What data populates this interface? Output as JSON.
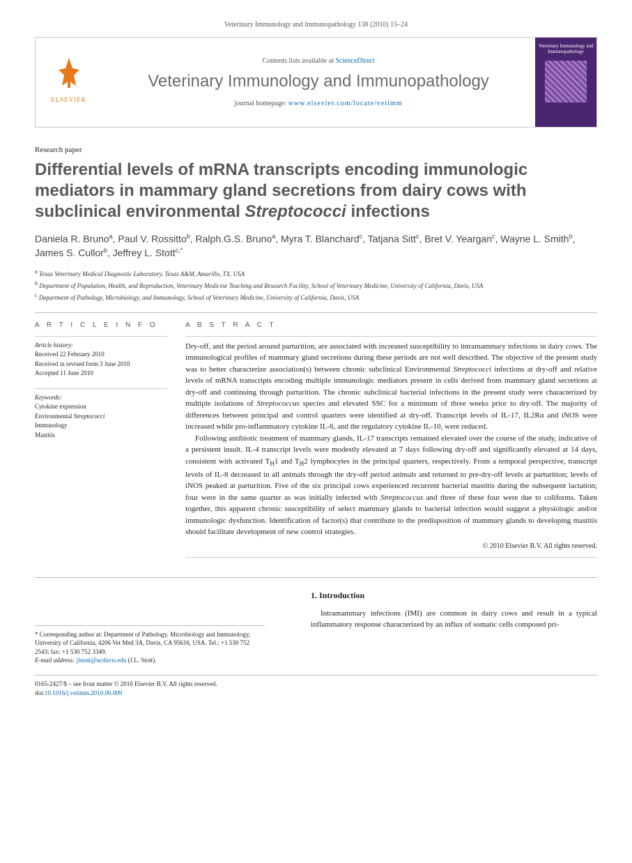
{
  "header_cite": "Veterinary Immunology and Immunopathology 138 (2010) 15–24",
  "banner": {
    "contents_prefix": "Contents lists available at ",
    "contents_link": "ScienceDirect",
    "journal_name": "Veterinary Immunology and Immunopathology",
    "homepage_prefix": "journal homepage: ",
    "homepage_link": "www.elsevier.com/locate/vetimm",
    "cover_title": "Veterinary Immunology and Immunopathology",
    "elsevier": "ELSEVIER"
  },
  "article_type": "Research paper",
  "title_html": "Differential levels of mRNA transcripts encoding immunologic mediators in mammary gland secretions from dairy cows with subclinical environmental <em>Streptococci</em> infections",
  "authors_html": "Daniela R. Bruno<sup>a</sup>, Paul V. Rossitto<sup>b</sup>, Ralph.G.S. Bruno<sup>a</sup>, Myra T. Blanchard<sup>c</sup>, Tatjana Sitt<sup>c</sup>, Bret V. Yeargan<sup>c</sup>, Wayne L. Smith<sup>b</sup>, James S. Cullor<sup>b</sup>, Jeffrey L. Stott<sup>c,*</sup>",
  "affiliations": [
    "<sup>a</sup> Texas Veterinary Medical Diagnostic Laboratory, Texas A&M, Amarillo, TX, USA",
    "<sup>b</sup> Department of Population, Health, and Reproduction, Veterinary Medicine Teaching and Research Facility, School of Veterinary Medicine, University of California, Davis, USA",
    "<sup>c</sup> Department of Pathology, Microbiology, and Immunology, School of Veterinary Medicine, University of California, Davis, USA"
  ],
  "article_info": {
    "head": "A R T I C L E   I N F O",
    "history_lbl": "Article history:",
    "history": [
      "Received 22 February 2010",
      "Received in revised form 3 June 2010",
      "Accepted 11 June 2010"
    ],
    "keywords_lbl": "Keywords:",
    "keywords": [
      "Cytokine expression",
      "Environmental Streptococci",
      "Immunology",
      "Mastitis"
    ]
  },
  "abstract": {
    "head": "A B S T R A C T",
    "paragraphs": [
      "Dry-off, and the period around parturition, are associated with increased susceptibility to intramammary infections in dairy cows. The immunological profiles of mammary gland secretions during these periods are not well described. The objective of the present study was to better characterize association(s) between chronic subclinical Environmental Streptococci infections at dry-off and relative levels of mRNA transcripts encoding multiple immunologic mediators present in cells derived from mammary gland secretions at dry-off and continuing through parturition. The chronic subclinical bacterial infections in the present study were characterized by multiple isolations of Streptococcus species and elevated SSC for a minimum of three weeks prior to dry-off. The majority of differences between principal and control quarters were identified at dry-off. Transcript levels of IL-17, IL2Rα and iNOS were increased while pro-inflammatory cytokine IL-6, and the regulatory cytokine IL-10, were reduced.",
      "Following antibiotic treatment of mammary glands, IL-17 transcripts remained elevated over the course of the study, indicative of a persistent insult. IL-4 transcript levels were modestly elevated at 7 days following dry-off and significantly elevated at 14 days, consistent with activated TH1 and TH2 lymphocytes in the principal quarters, respectively. From a temporal perspective, transcript levels of IL-8 decreased in all animals through the dry-off period animals and returned to pre-dry-off levels at parturition; levels of iNOS peaked at parturition. Five of the six principal cows experienced recurrent bacterial mastitis during the subsequent lactation; four were in the same quarter as was initially infected with Streptococcus and three of these four were due to coliforms. Taken together, this apparent chronic susceptibility of select mammary glands to bacterial infection would suggest a physiologic and/or immunologic dysfunction. Identification of factor(s) that contribute to the predisposition of mammary glands to developing mastitis should facilitate development of new control strategies."
    ],
    "copyright": "© 2010 Elsevier B.V. All rights reserved."
  },
  "intro": {
    "head": "1.  Introduction",
    "text": "Intramammary infections (IMI) are common in dairy cows and result in a typical inflammatory response characterized by an influx of somatic cells composed pri-"
  },
  "corr": {
    "star": "*",
    "text": "Corresponding author at: Department of Pathology, Microbiology and Immunology, University of California, 4206 Vet Med 3A, Davis, CA 95616, USA. Tel.: +1 530 752 2543; fax: +1 530 752 3349.",
    "email_lbl": "E-mail address:",
    "email": "jlstott@ucdavis.edu",
    "email_who": "(J.L. Stott)."
  },
  "footer": {
    "line1": "0165-2427/$ – see front matter © 2010 Elsevier B.V. All rights reserved.",
    "doi_lbl": "doi:",
    "doi": "10.1016/j.vetimm.2010.06.009"
  }
}
